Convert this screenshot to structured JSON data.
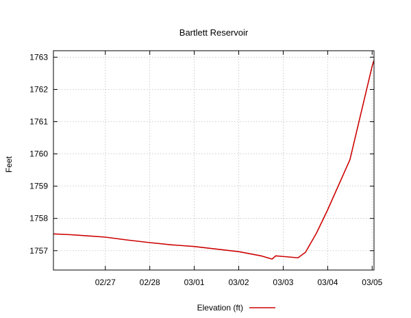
{
  "chart_data": {
    "type": "line",
    "title": "Bartlett Reservoir",
    "xlabel": "",
    "ylabel": "Feet",
    "xlim": [
      "2019-02-26T08:00",
      "2019-03-05T13:00"
    ],
    "ylim": [
      1756.4,
      1763.2
    ],
    "grid": true,
    "legend_position": "bottom-center",
    "x_ticks": [
      "02/27",
      "02/28",
      "03/01",
      "03/02",
      "03/03",
      "03/04",
      "03/05"
    ],
    "y_ticks": [
      1757,
      1758,
      1759,
      1760,
      1761,
      1762,
      1763
    ],
    "series": [
      {
        "name": "Elevation (ft)",
        "color": "#cc0000",
        "points": [
          {
            "x": "2019-02-26T08:00",
            "y": 1757.52
          },
          {
            "x": "2019-02-26T16:00",
            "y": 1757.5
          },
          {
            "x": "2019-02-27T00:00",
            "y": 1757.47
          },
          {
            "x": "2019-02-27T12:00",
            "y": 1757.42
          },
          {
            "x": "2019-02-28T00:00",
            "y": 1757.33
          },
          {
            "x": "2019-02-28T12:00",
            "y": 1757.25
          },
          {
            "x": "2019-03-01T00:00",
            "y": 1757.18
          },
          {
            "x": "2019-03-01T12:00",
            "y": 1757.13
          },
          {
            "x": "2019-03-02T00:00",
            "y": 1757.05
          },
          {
            "x": "2019-03-02T12:00",
            "y": 1756.97
          },
          {
            "x": "2019-03-03T00:00",
            "y": 1756.84
          },
          {
            "x": "2019-03-03T06:00",
            "y": 1756.74
          },
          {
            "x": "2019-03-03T08:00",
            "y": 1756.84
          },
          {
            "x": "2019-03-03T12:00",
            "y": 1756.82
          },
          {
            "x": "2019-03-03T20:00",
            "y": 1756.78
          },
          {
            "x": "2019-03-04T00:00",
            "y": 1756.95
          },
          {
            "x": "2019-03-04T06:00",
            "y": 1757.55
          },
          {
            "x": "2019-03-04T12:00",
            "y": 1758.27
          },
          {
            "x": "2019-03-05T00:00",
            "y": 1759.82
          },
          {
            "x": "2019-03-05T12:00",
            "y": 1762.72
          },
          {
            "x": "2019-03-05T13:00",
            "y": 1762.9
          }
        ]
      }
    ]
  }
}
